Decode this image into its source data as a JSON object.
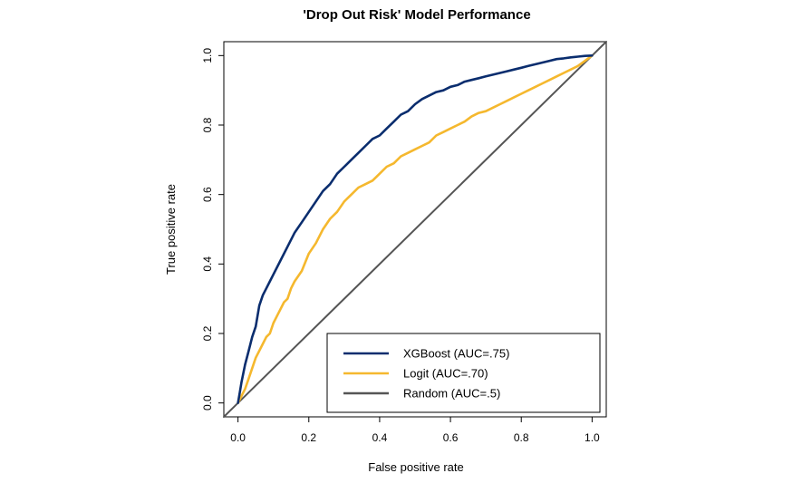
{
  "chart_data": {
    "type": "line",
    "title": "'Drop Out Risk' Model Performance",
    "xlabel": "False positive rate",
    "ylabel": "True positive rate",
    "xlim": [
      -0.04,
      1.04
    ],
    "ylim": [
      -0.04,
      1.04
    ],
    "x_ticks": [
      0.0,
      0.2,
      0.4,
      0.6,
      0.8,
      1.0
    ],
    "y_ticks": [
      0.0,
      0.2,
      0.4,
      0.6,
      0.8,
      1.0
    ],
    "x_tick_labels": [
      "0.0",
      "0.2",
      "0.4",
      "0.6",
      "0.8",
      "1.0"
    ],
    "y_tick_labels": [
      "0.0",
      "0.2",
      "0.4",
      "0.6",
      "0.8",
      "1.0"
    ],
    "grid": false,
    "legend_position": "bottom-right",
    "series": [
      {
        "name": "XGBoost (AUC=.75)",
        "color": "#0a2d6e",
        "x": [
          0.0,
          0.005,
          0.01,
          0.02,
          0.03,
          0.04,
          0.05,
          0.06,
          0.07,
          0.08,
          0.09,
          0.1,
          0.12,
          0.14,
          0.16,
          0.18,
          0.2,
          0.22,
          0.24,
          0.26,
          0.28,
          0.3,
          0.32,
          0.34,
          0.36,
          0.38,
          0.4,
          0.42,
          0.44,
          0.46,
          0.48,
          0.5,
          0.52,
          0.54,
          0.56,
          0.58,
          0.6,
          0.62,
          0.64,
          0.66,
          0.68,
          0.7,
          0.72,
          0.74,
          0.76,
          0.78,
          0.8,
          0.82,
          0.84,
          0.86,
          0.88,
          0.9,
          0.92,
          0.94,
          0.96,
          0.98,
          1.0
        ],
        "y": [
          0.0,
          0.03,
          0.06,
          0.11,
          0.15,
          0.19,
          0.22,
          0.28,
          0.31,
          0.33,
          0.35,
          0.37,
          0.41,
          0.45,
          0.49,
          0.52,
          0.55,
          0.58,
          0.61,
          0.63,
          0.66,
          0.68,
          0.7,
          0.72,
          0.74,
          0.76,
          0.77,
          0.79,
          0.81,
          0.83,
          0.84,
          0.86,
          0.875,
          0.885,
          0.895,
          0.9,
          0.91,
          0.915,
          0.925,
          0.93,
          0.935,
          0.94,
          0.945,
          0.95,
          0.955,
          0.96,
          0.965,
          0.97,
          0.975,
          0.98,
          0.985,
          0.99,
          0.992,
          0.995,
          0.997,
          0.999,
          1.0
        ]
      },
      {
        "name": "Logit (AUC=.70)",
        "color": "#f5b82e",
        "x": [
          0.0,
          0.01,
          0.02,
          0.03,
          0.04,
          0.05,
          0.06,
          0.07,
          0.08,
          0.09,
          0.1,
          0.11,
          0.12,
          0.13,
          0.14,
          0.15,
          0.16,
          0.18,
          0.2,
          0.22,
          0.24,
          0.26,
          0.28,
          0.3,
          0.32,
          0.34,
          0.36,
          0.38,
          0.4,
          0.42,
          0.44,
          0.46,
          0.48,
          0.5,
          0.52,
          0.54,
          0.56,
          0.58,
          0.6,
          0.62,
          0.64,
          0.66,
          0.68,
          0.7,
          0.72,
          0.74,
          0.76,
          0.78,
          0.8,
          0.82,
          0.84,
          0.86,
          0.88,
          0.9,
          0.92,
          0.94,
          0.96,
          0.98,
          1.0
        ],
        "y": [
          0.0,
          0.02,
          0.04,
          0.07,
          0.1,
          0.13,
          0.15,
          0.17,
          0.19,
          0.2,
          0.23,
          0.25,
          0.27,
          0.29,
          0.3,
          0.33,
          0.35,
          0.38,
          0.43,
          0.46,
          0.5,
          0.53,
          0.55,
          0.58,
          0.6,
          0.62,
          0.63,
          0.64,
          0.66,
          0.68,
          0.69,
          0.71,
          0.72,
          0.73,
          0.74,
          0.75,
          0.77,
          0.78,
          0.79,
          0.8,
          0.81,
          0.825,
          0.835,
          0.84,
          0.85,
          0.86,
          0.87,
          0.88,
          0.89,
          0.9,
          0.91,
          0.92,
          0.93,
          0.94,
          0.95,
          0.96,
          0.97,
          0.985,
          1.0
        ]
      },
      {
        "name": "Random (AUC=.5)",
        "color": "#555555",
        "x": [
          -0.04,
          1.04
        ],
        "y": [
          -0.04,
          1.04
        ]
      }
    ]
  }
}
